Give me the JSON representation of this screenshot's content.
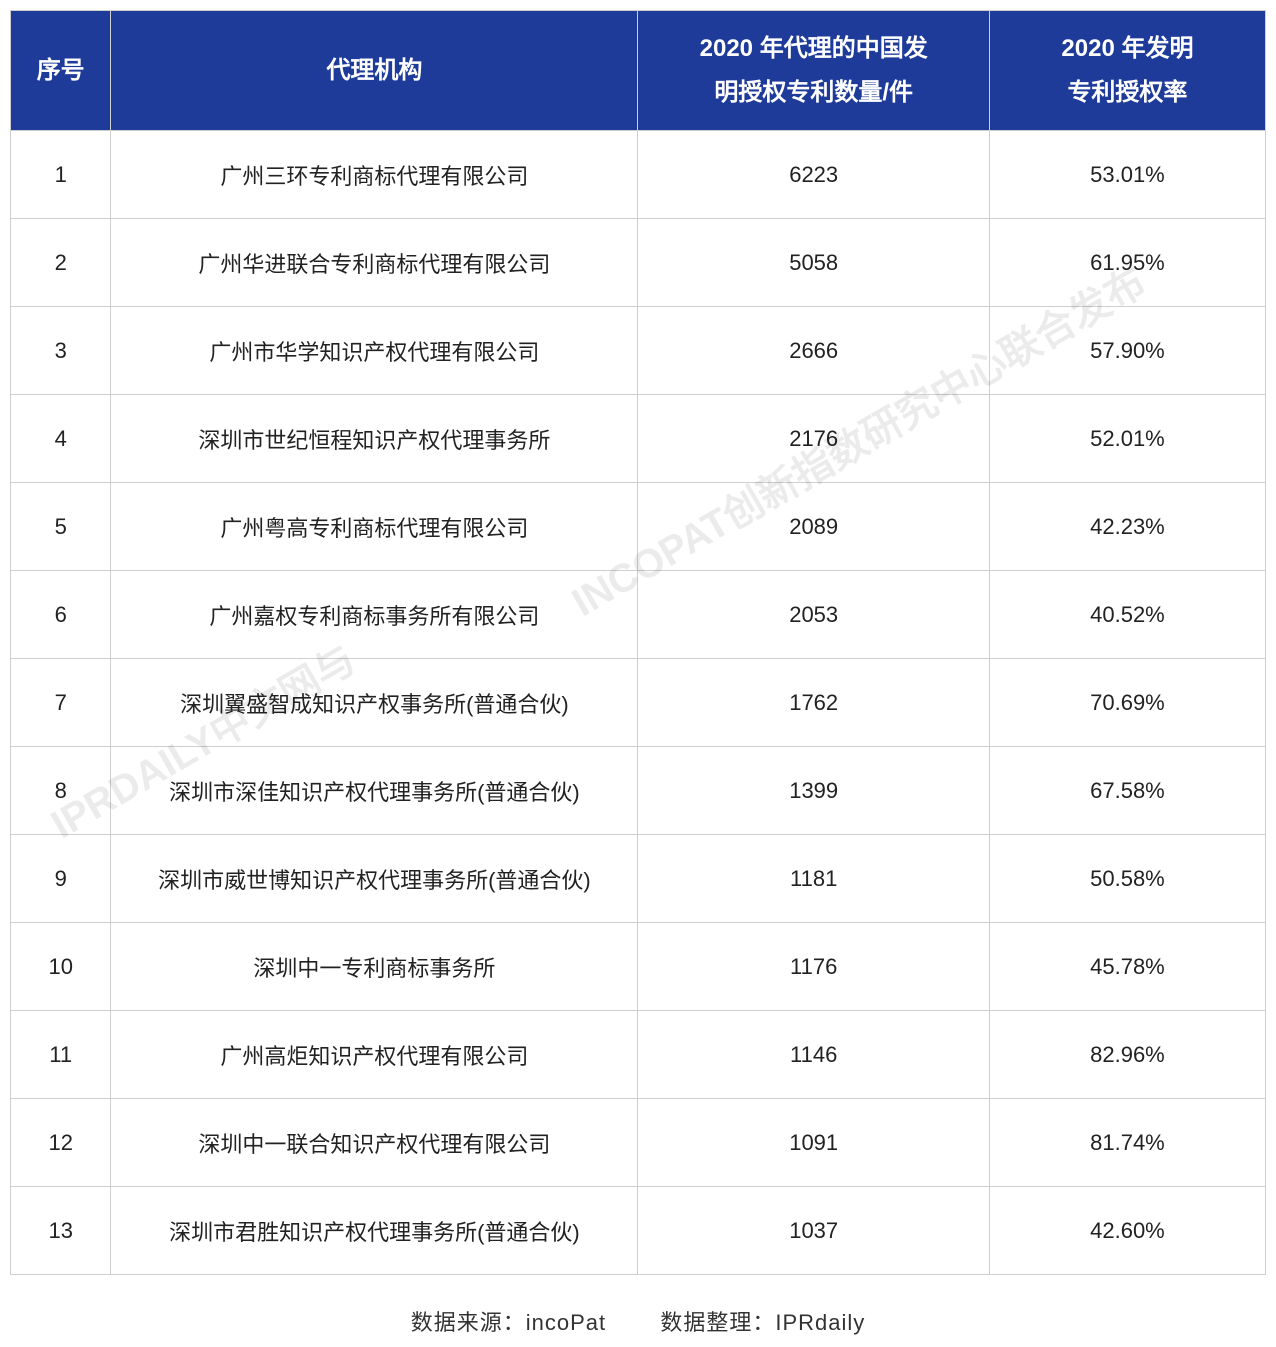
{
  "table": {
    "header_bg": "#1e3b9a",
    "header_fg": "#ffffff",
    "border_color": "#cfcfcf",
    "cell_fontsize": 22,
    "header_fontsize": 24,
    "columns": [
      {
        "key": "idx",
        "label_lines": [
          "序号"
        ],
        "width_pct": 8
      },
      {
        "key": "name",
        "label_lines": [
          "代理机构"
        ],
        "width_pct": 42
      },
      {
        "key": "count",
        "label_lines": [
          "2020 年代理的中国发",
          "明授权专利数量/件"
        ],
        "width_pct": 28
      },
      {
        "key": "rate",
        "label_lines": [
          "2020 年发明",
          "专利授权率"
        ],
        "width_pct": 22
      }
    ],
    "rows": [
      {
        "idx": "1",
        "name": "广州三环专利商标代理有限公司",
        "count": "6223",
        "rate": "53.01%"
      },
      {
        "idx": "2",
        "name": "广州华进联合专利商标代理有限公司",
        "count": "5058",
        "rate": "61.95%"
      },
      {
        "idx": "3",
        "name": "广州市华学知识产权代理有限公司",
        "count": "2666",
        "rate": "57.90%"
      },
      {
        "idx": "4",
        "name": "深圳市世纪恒程知识产权代理事务所",
        "count": "2176",
        "rate": "52.01%"
      },
      {
        "idx": "5",
        "name": "广州粤高专利商标代理有限公司",
        "count": "2089",
        "rate": "42.23%"
      },
      {
        "idx": "6",
        "name": "广州嘉权专利商标事务所有限公司",
        "count": "2053",
        "rate": "40.52%"
      },
      {
        "idx": "7",
        "name": "深圳翼盛智成知识产权事务所(普通合伙)",
        "count": "1762",
        "rate": "70.69%"
      },
      {
        "idx": "8",
        "name": "深圳市深佳知识产权代理事务所(普通合伙)",
        "count": "1399",
        "rate": "67.58%"
      },
      {
        "idx": "9",
        "name": "深圳市威世博知识产权代理事务所(普通合伙)",
        "count": "1181",
        "rate": "50.58%"
      },
      {
        "idx": "10",
        "name": "深圳中一专利商标事务所",
        "count": "1176",
        "rate": "45.78%"
      },
      {
        "idx": "11",
        "name": "广州高炬知识产权代理有限公司",
        "count": "1146",
        "rate": "82.96%"
      },
      {
        "idx": "12",
        "name": "深圳中一联合知识产权代理有限公司",
        "count": "1091",
        "rate": "81.74%"
      },
      {
        "idx": "13",
        "name": "深圳市君胜知识产权代理事务所(普通合伙)",
        "count": "1037",
        "rate": "42.60%"
      }
    ]
  },
  "footer": {
    "source_label": "数据来源：",
    "source_value": "incoPat",
    "org_label": "数据整理：",
    "org_value": "IPRdaily"
  },
  "watermark": {
    "line1": "INCOPAT创新指数研究中心联合发布",
    "line2": "IPRDAILY中文网与"
  }
}
